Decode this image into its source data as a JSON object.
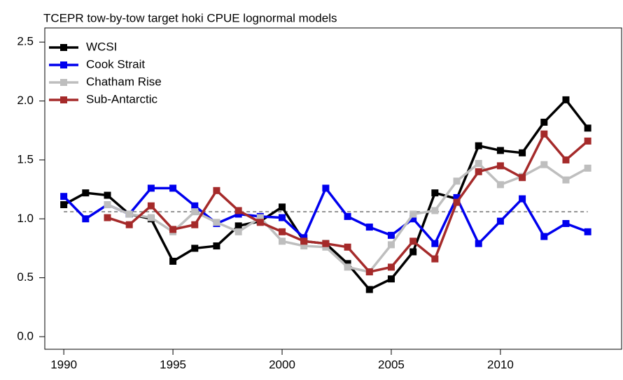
{
  "chart_data": {
    "type": "line",
    "title": "TCEPR tow-by-tow target hoki CPUE lognormal models",
    "x": [
      1990,
      1991,
      1992,
      1993,
      1994,
      1995,
      1996,
      1997,
      1998,
      1999,
      2000,
      2001,
      2002,
      2003,
      2004,
      2005,
      2006,
      2007,
      2008,
      2009,
      2010,
      2011,
      2012,
      2013,
      2014
    ],
    "series": [
      {
        "name": "WCSI",
        "color": "#000000",
        "values": [
          1.12,
          1.22,
          1.2,
          1.04,
          1.0,
          0.64,
          0.75,
          0.77,
          0.94,
          0.98,
          1.1,
          0.81,
          0.79,
          0.62,
          0.4,
          0.49,
          0.72,
          1.22,
          1.17,
          1.62,
          1.58,
          1.56,
          1.82,
          2.01,
          1.77
        ]
      },
      {
        "name": "Cook Strait",
        "color": "#0000ee",
        "values": [
          1.19,
          1.0,
          1.12,
          1.04,
          1.26,
          1.26,
          1.11,
          0.96,
          1.04,
          1.02,
          1.01,
          0.84,
          1.26,
          1.02,
          0.93,
          0.86,
          1.0,
          0.79,
          1.18,
          0.79,
          0.98,
          1.17,
          0.85,
          0.96,
          0.89
        ]
      },
      {
        "name": "Chatham Rise",
        "color": "#bebebe",
        "values": [
          null,
          null,
          1.12,
          1.04,
          1.01,
          0.89,
          1.06,
          0.97,
          0.89,
          1.01,
          0.81,
          0.77,
          0.76,
          0.59,
          0.55,
          0.78,
          1.04,
          1.07,
          1.32,
          1.47,
          1.29,
          1.36,
          1.46,
          1.33,
          1.43
        ]
      },
      {
        "name": "Sub-Antarctic",
        "color": "#a52a2a",
        "values": [
          null,
          null,
          1.01,
          0.95,
          1.11,
          0.91,
          0.95,
          1.24,
          1.07,
          0.97,
          0.89,
          0.81,
          0.79,
          0.76,
          0.55,
          0.59,
          0.81,
          0.66,
          1.14,
          1.4,
          1.45,
          1.35,
          1.72,
          1.5,
          1.66
        ]
      }
    ],
    "reference_line": 1.06,
    "xlim": [
      1989.13,
      2015.55
    ],
    "xticks": [
      1990,
      1995,
      2000,
      2005,
      2010
    ],
    "ylim": [
      -0.107,
      2.62
    ],
    "yticks": [
      {
        "value": 0,
        "label": "0.0"
      },
      0.5,
      {
        "value": 1,
        "label": "1.0"
      },
      1.5,
      {
        "value": 2,
        "label": "2.0"
      },
      2.5
    ],
    "legend": "top-left"
  }
}
